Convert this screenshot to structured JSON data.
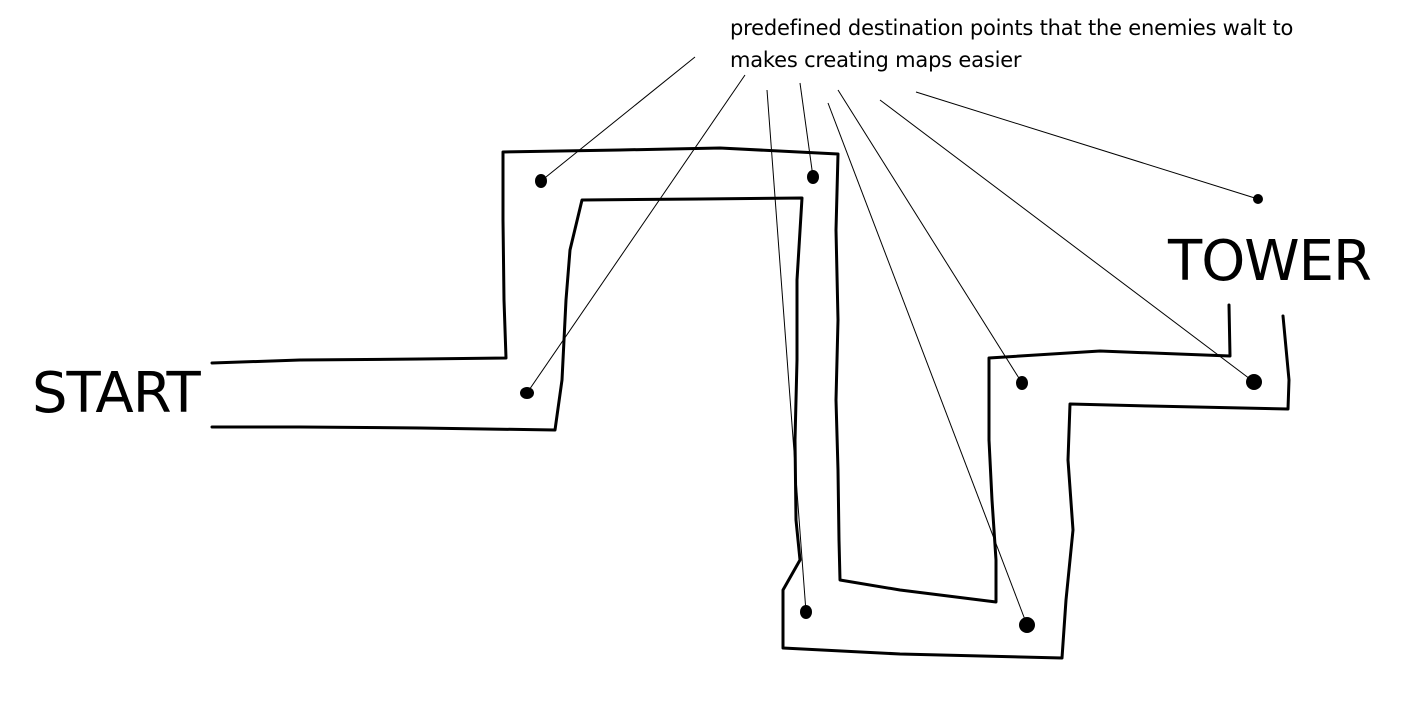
{
  "annotation": {
    "line1": "predefined destination points that the enemies walt to",
    "line2": "makes creating maps easier"
  },
  "labels": {
    "start": "START",
    "tower": "TOWER"
  },
  "colors": {
    "ink": "#000000",
    "background": "#ffffff"
  }
}
